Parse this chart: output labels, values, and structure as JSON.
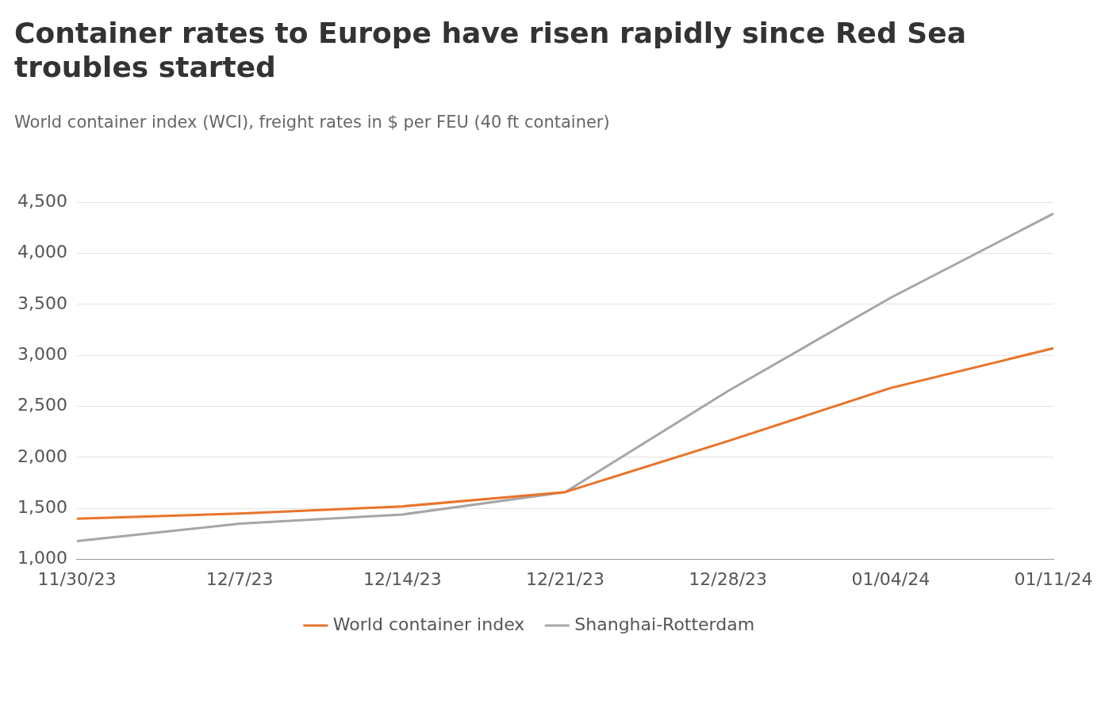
{
  "chart_data": {
    "type": "line",
    "title": "Container rates to Europe have risen rapidly since Red Sea troubles started",
    "subtitle": "World container index (WCI), freight rates in $ per FEU (40 ft container)",
    "categories": [
      "11/30/23",
      "12/7/23",
      "12/14/23",
      "12/21/23",
      "12/28/23",
      "01/04/24",
      "01/11/24"
    ],
    "series": [
      {
        "name": "World container index",
        "color": "#e8742a",
        "values": [
          1400,
          1450,
          1520,
          1660,
          2160,
          2680,
          3070
        ]
      },
      {
        "name": "Shanghai-Rotterdam",
        "color": "#a6a6a6",
        "values": [
          1180,
          1350,
          1440,
          1660,
          2650,
          3565,
          4390
        ]
      }
    ],
    "ylim": [
      1000,
      4500
    ],
    "yticks": [
      {
        "value": 1000,
        "label": "1,000"
      },
      {
        "value": 1500,
        "label": "1,500"
      },
      {
        "value": 2000,
        "label": "2,000"
      },
      {
        "value": 2500,
        "label": "2,500"
      },
      {
        "value": 3000,
        "label": "3,000"
      },
      {
        "value": 3500,
        "label": "3,500"
      },
      {
        "value": 4000,
        "label": "4,000"
      },
      {
        "value": 4500,
        "label": "4,500"
      }
    ],
    "grid": "y",
    "legend": "bottom",
    "marker": "none",
    "line_style": "solid"
  }
}
